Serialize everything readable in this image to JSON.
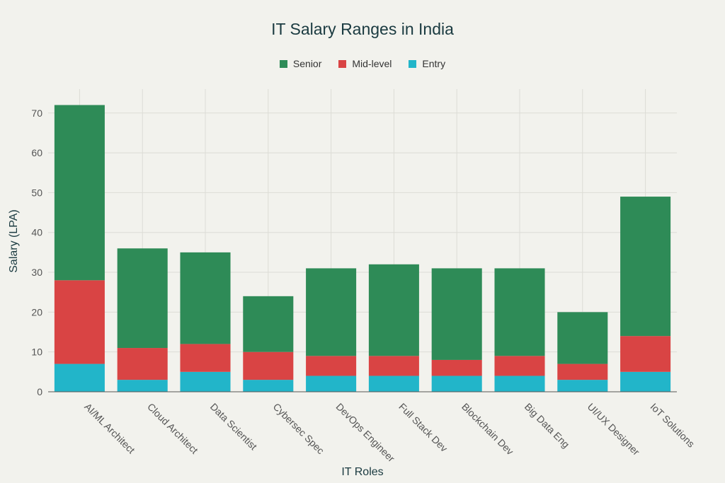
{
  "chart_data": {
    "type": "bar",
    "stacked": true,
    "title": "IT Salary Ranges in India",
    "xlabel": "IT Roles",
    "ylabel": "Salary (LPA)",
    "ylim": [
      0,
      76
    ],
    "yticks": [
      0,
      10,
      20,
      30,
      40,
      50,
      60,
      70
    ],
    "grid": true,
    "legend_position": "top-center",
    "categories": [
      "AI/ML Architect",
      "Cloud Architect",
      "Data Scientist",
      "Cybersec Spec",
      "DevOps Engineer",
      "Full Stack Dev",
      "Blockchain Dev",
      "Big Data Eng",
      "UI/UX Designer",
      "IoT Solutions"
    ],
    "series": [
      {
        "name": "Entry",
        "color": "#22b5c9",
        "values": [
          7,
          3,
          5,
          3,
          4,
          4,
          4,
          4,
          3,
          5
        ]
      },
      {
        "name": "Mid-level",
        "color": "#d94444",
        "values": [
          21,
          8,
          7,
          7,
          5,
          5,
          4,
          5,
          4,
          9
        ]
      },
      {
        "name": "Senior",
        "color": "#2e8b57",
        "values": [
          44,
          25,
          23,
          14,
          22,
          23,
          23,
          22,
          13,
          35
        ]
      }
    ],
    "legend_order": [
      "Senior",
      "Mid-level",
      "Entry"
    ]
  }
}
